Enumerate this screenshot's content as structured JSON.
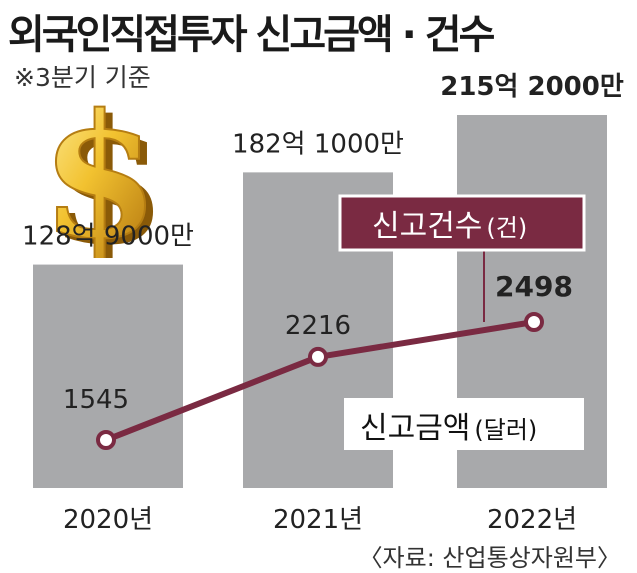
{
  "header": {
    "title": "외국인직접투자 신고금액 · 건수",
    "subtitle": "※3분기 기준"
  },
  "footer": {
    "source": "〈자료: 산업통상자원부〉"
  },
  "legend": {
    "count_name": "신고건수",
    "count_unit": "(건)",
    "amount_name": "신고금액",
    "amount_unit": "(달러)"
  },
  "colors": {
    "bar": "#a8a9ab",
    "line": "#7a2a42",
    "count_box": "#7a2a42",
    "dollar_gold": "#e0a81c"
  },
  "icons": {
    "dollar": "dollar-sign-icon"
  },
  "chart_data": {
    "type": "bar+line",
    "categories": [
      "2020년",
      "2021년",
      "2022년"
    ],
    "series": [
      {
        "name": "신고금액",
        "type": "bar",
        "unit": "달러",
        "values": [
          12890000000,
          18210000000,
          21520000000
        ],
        "labels": [
          "128억 9000만",
          "182억 1000만",
          "215억 2000만"
        ]
      },
      {
        "name": "신고건수",
        "type": "line",
        "unit": "건",
        "values": [
          1545,
          2216,
          2498
        ],
        "labels": [
          "1545",
          "2216",
          "2498"
        ]
      }
    ]
  }
}
